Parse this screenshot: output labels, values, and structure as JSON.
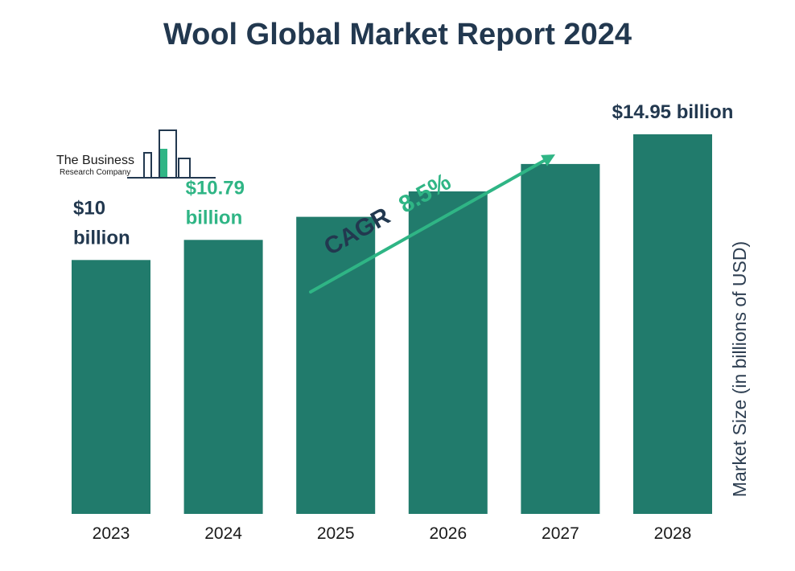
{
  "chart_data": {
    "type": "bar",
    "title": "Wool Global Market Report 2024",
    "categories": [
      "2023",
      "2024",
      "2025",
      "2026",
      "2027",
      "2028"
    ],
    "values": [
      10.0,
      10.79,
      11.7,
      12.7,
      13.78,
      14.95
    ],
    "value_labels": [
      {
        "index": 0,
        "lines": [
          "$10",
          "billion"
        ],
        "color": "#22384f"
      },
      {
        "index": 1,
        "lines": [
          "$10.79",
          "billion"
        ],
        "color": "#2fb585"
      },
      {
        "index": 5,
        "lines": [
          "$14.95 billion"
        ],
        "color": "#22384f"
      }
    ],
    "xlabel": "",
    "ylabel": "Market Size (in billions of USD)",
    "grid": false,
    "legend": "none",
    "annotation": {
      "prefix": "CAGR",
      "value": "8.5%"
    },
    "colors": {
      "bar": "#217b6c",
      "title": "#22384f",
      "highlight": "#2fb585",
      "axis_text": "#1a1a1a",
      "ylabel": "#2e3f52"
    }
  },
  "logo": {
    "line1": "The Business",
    "line2": "Research Company",
    "icon": "building-bars-icon"
  }
}
